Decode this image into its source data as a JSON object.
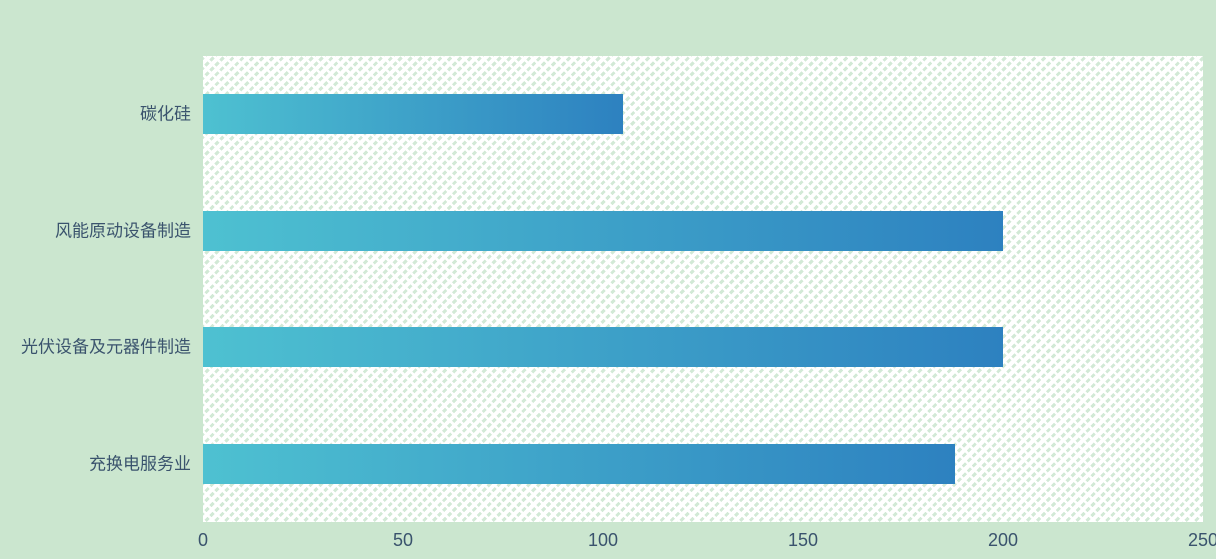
{
  "chart_data": {
    "type": "bar",
    "orientation": "horizontal",
    "title": "",
    "xlabel": "",
    "ylabel": "",
    "categories": [
      "碳化硅",
      "风能原动设备制造",
      "光伏设备及元器件制造",
      "充换电服务业"
    ],
    "values": [
      105,
      200,
      200,
      188
    ],
    "xlim": [
      0,
      250
    ],
    "x_ticks": [
      "0",
      "50",
      "100",
      "150",
      "200",
      "250"
    ],
    "grid": false,
    "legend": "none",
    "colors": {
      "page_background": "#cbe6cf",
      "plot_background": "#ffffff",
      "plot_hatch": "#d2e9d6",
      "bar_gradient_start": "#4ec1d1",
      "bar_gradient_end": "#2d81c0",
      "text": "#3a536d"
    }
  }
}
